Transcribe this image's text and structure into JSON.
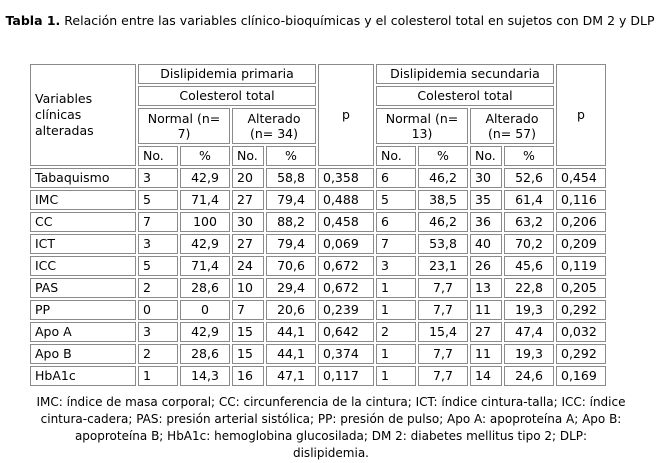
{
  "caption": {
    "label": "Tabla 1.",
    "text": "Relación entre las variables clínico-bioquímicas y el colesterol total en sujetos con DM 2 y DLP"
  },
  "table": {
    "row_header": "Variables clínicas alteradas",
    "group1": "Dislipidemia primaria",
    "group2": "Dislipidemia secundaria",
    "sub": "Colesterol total",
    "normal1": "Normal (n= 7)",
    "alterado1": "Alterado (n= 34)",
    "normal2": "Normal (n= 13)",
    "alterado2": "Alterado (n= 57)",
    "p": "p",
    "no": "No.",
    "pct": "%",
    "rows": [
      {
        "label": "Tabaquismo",
        "c": [
          "3",
          "42,9",
          "20",
          "58,8",
          "0,358",
          "6",
          "46,2",
          "30",
          "52,6",
          "0,454"
        ]
      },
      {
        "label": "IMC",
        "c": [
          "5",
          "71,4",
          "27",
          "79,4",
          "0,488",
          "5",
          "38,5",
          "35",
          "61,4",
          "0,116"
        ]
      },
      {
        "label": "CC",
        "c": [
          "7",
          "100",
          "30",
          "88,2",
          "0,458",
          "6",
          "46,2",
          "36",
          "63,2",
          "0,206"
        ]
      },
      {
        "label": "ICT",
        "c": [
          "3",
          "42,9",
          "27",
          "79,4",
          "0,069",
          "7",
          "53,8",
          "40",
          "70,2",
          "0,209"
        ]
      },
      {
        "label": "ICC",
        "c": [
          "5",
          "71,4",
          "24",
          "70,6",
          "0,672",
          "3",
          "23,1",
          "26",
          "45,6",
          "0,119"
        ]
      },
      {
        "label": "PAS",
        "c": [
          "2",
          "28,6",
          "10",
          "29,4",
          "0,672",
          "1",
          "7,7",
          "13",
          "22,8",
          "0,205"
        ]
      },
      {
        "label": "PP",
        "c": [
          "0",
          "0",
          "7",
          "20,6",
          "0,239",
          "1",
          "7,7",
          "11",
          "19,3",
          "0,292"
        ]
      },
      {
        "label": "Apo A",
        "c": [
          "3",
          "42,9",
          "15",
          "44,1",
          "0,642",
          "2",
          "15,4",
          "27",
          "47,4",
          "0,032"
        ]
      },
      {
        "label": "Apo B",
        "c": [
          "2",
          "28,6",
          "15",
          "44,1",
          "0,374",
          "1",
          "7,7",
          "11",
          "19,3",
          "0,292"
        ]
      },
      {
        "label": "HbA1c",
        "c": [
          "1",
          "14,3",
          "16",
          "47,1",
          "0,117",
          "1",
          "7,7",
          "14",
          "24,6",
          "0,169"
        ]
      }
    ]
  },
  "footnote": "IMC: índice de masa corporal; CC: circunferencia de la cintura; ICT: índice cintura-talla; ICC: índice cintura-cadera; PAS: presión arterial sistólica; PP: presión de pulso; Apo A: apoproteína A; Apo B: apoproteína B; HbA1c: hemoglobina glucosilada; DM 2: diabetes mellitus tipo 2; DLP: dislipidemia."
}
